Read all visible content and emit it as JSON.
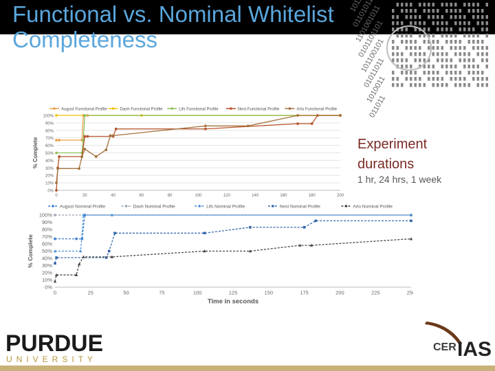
{
  "slide": {
    "title": "Functional vs. Nominal Whitelist Completeness",
    "duration_label": "Experiment durations",
    "duration_value": "1 hr, 24 hrs, 1 week"
  },
  "branding": {
    "left_logo_top": "PURDUE",
    "left_logo_bottom": "UNIVERSITY",
    "right_logo_a": "CER",
    "right_logo_b": "IAS"
  },
  "colors": {
    "title": "#5aa6dc",
    "accent": "#7a2a24",
    "footer": "#c9b27a"
  },
  "chart_data": [
    {
      "type": "line",
      "title": "",
      "xlabel": "",
      "ylabel": "% Complete",
      "xlim": [
        0,
        200
      ],
      "ylim": [
        0,
        100
      ],
      "x_ticks": [
        0,
        20,
        40,
        60,
        80,
        100,
        120,
        140,
        160,
        180,
        200
      ],
      "y_ticks": [
        0,
        10,
        20,
        30,
        40,
        50,
        60,
        70,
        80,
        90,
        100
      ],
      "y_tick_suffix": "%",
      "grid": true,
      "legend_position": "top",
      "series": [
        {
          "name": "August Functional Profile",
          "color": "#e9a04a",
          "marker": "circle",
          "points": [
            [
              0,
              67
            ],
            [
              2,
              67
            ],
            [
              18,
              67
            ],
            [
              19,
              100
            ],
            [
              22,
              100
            ],
            [
              200,
              100
            ]
          ]
        },
        {
          "name": "Dash Functional Profile",
          "color": "#f2c200",
          "marker": "circle",
          "points": [
            [
              0,
              100
            ],
            [
              60,
              100
            ],
            [
              200,
              100
            ]
          ]
        },
        {
          "name": "Lifs Functional Profile",
          "color": "#8dbf5a",
          "marker": "circle",
          "points": [
            [
              0,
              50
            ],
            [
              18,
              50
            ],
            [
              19,
              67
            ],
            [
              20,
              100
            ],
            [
              200,
              100
            ]
          ]
        },
        {
          "name": "Nest Functional Profile",
          "color": "#b5532a",
          "marker": "circle",
          "points": [
            [
              0,
              0
            ],
            [
              1,
              30
            ],
            [
              2,
              45
            ],
            [
              18,
              45
            ],
            [
              20,
              72
            ],
            [
              22,
              72
            ],
            [
              40,
              72
            ],
            [
              42,
              82
            ],
            [
              105,
              82
            ],
            [
              170,
              89
            ],
            [
              180,
              89
            ],
            [
              184,
              100
            ],
            [
              200,
              100
            ]
          ]
        },
        {
          "name": "Arlo Functional Profile",
          "color": "#a5703a",
          "marker": "circle",
          "points": [
            [
              0,
              10
            ],
            [
              1,
              29
            ],
            [
              16,
              29
            ],
            [
              18,
              45
            ],
            [
              20,
              55
            ],
            [
              28,
              45
            ],
            [
              35,
              54
            ],
            [
              38,
              73
            ],
            [
              40,
              73
            ],
            [
              105,
              86
            ],
            [
              135,
              86
            ],
            [
              170,
              100
            ],
            [
              200,
              100
            ]
          ]
        }
      ]
    },
    {
      "type": "line",
      "title": "",
      "xlabel": "Time in seconds",
      "ylabel": "% Complete",
      "xlim": [
        0,
        250
      ],
      "ylim": [
        0,
        100
      ],
      "x_ticks": [
        0,
        25,
        50,
        75,
        100,
        125,
        150,
        175,
        200,
        225,
        250
      ],
      "y_ticks": [
        0,
        10,
        20,
        30,
        40,
        50,
        60,
        70,
        80,
        90,
        100
      ],
      "y_tick_suffix": "%",
      "grid": false,
      "legend_position": "top",
      "series": [
        {
          "name": "August Nominal Profile",
          "color": "#3a7fd0",
          "marker": "circle",
          "points": [
            [
              0,
              67
            ],
            [
              15,
              67
            ],
            [
              19,
              67
            ],
            [
              21,
              100
            ],
            [
              250,
              100
            ]
          ]
        },
        {
          "name": "Dash Nominal Profile",
          "color": "#9aa4b0",
          "marker": "diamond",
          "points": [
            [
              0,
              100
            ],
            [
              250,
              100
            ]
          ]
        },
        {
          "name": "Lifs Nominal Profile",
          "color": "#4a90d9",
          "marker": "triangle",
          "points": [
            [
              0,
              50
            ],
            [
              18,
              50
            ],
            [
              20,
              100
            ],
            [
              40,
              100
            ],
            [
              250,
              100
            ]
          ]
        },
        {
          "name": "Nest Nominal Profile",
          "color": "#3366aa",
          "marker": "square",
          "points": [
            [
              0,
              33
            ],
            [
              1,
              41
            ],
            [
              36,
              41
            ],
            [
              38,
              50
            ],
            [
              42,
              75
            ],
            [
              105,
              75
            ],
            [
              137,
              83
            ],
            [
              175,
              83
            ],
            [
              183,
              92
            ],
            [
              250,
              92
            ]
          ]
        },
        {
          "name": "Arlo Nominal Profile",
          "color": "#444444",
          "marker": "triangle",
          "points": [
            [
              0,
              8
            ],
            [
              1,
              17
            ],
            [
              15,
              17
            ],
            [
              17,
              32
            ],
            [
              20,
              42
            ],
            [
              40,
              42
            ],
            [
              105,
              50
            ],
            [
              137,
              50
            ],
            [
              172,
              58
            ],
            [
              180,
              58
            ],
            [
              250,
              67
            ]
          ]
        }
      ]
    }
  ]
}
